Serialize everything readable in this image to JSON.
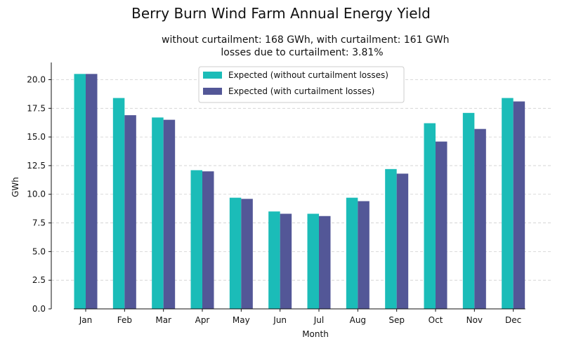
{
  "chart_data": {
    "type": "bar",
    "title": "Berry Burn Wind Farm Annual Energy Yield",
    "subtitle_lines": [
      "without curtailment: 168 GWh, with curtailment: 161 GWh",
      "losses due to curtailment: 3.81%"
    ],
    "xlabel": "Month",
    "ylabel": "GWh",
    "ylim": [
      0,
      21.5
    ],
    "yticks": [
      "0.0",
      "2.5",
      "5.0",
      "7.5",
      "10.0",
      "12.5",
      "15.0",
      "17.5",
      "20.0"
    ],
    "grid": "horizontal dashed",
    "legend_position": "top-center",
    "categories": [
      "Jan",
      "Feb",
      "Mar",
      "Apr",
      "May",
      "Jun",
      "Jul",
      "Aug",
      "Sep",
      "Oct",
      "Nov",
      "Dec"
    ],
    "series": [
      {
        "name": "Expected (without curtailment losses)",
        "color": "#1bbcb8",
        "values": [
          20.5,
          18.4,
          16.7,
          12.1,
          9.7,
          8.5,
          8.3,
          9.7,
          12.2,
          16.2,
          17.1,
          18.4
        ]
      },
      {
        "name": "Expected (with curtailment losses)",
        "color": "#535797",
        "values": [
          20.5,
          16.9,
          16.5,
          12.0,
          9.6,
          8.3,
          8.1,
          9.4,
          11.8,
          14.6,
          15.7,
          18.1
        ]
      }
    ]
  }
}
